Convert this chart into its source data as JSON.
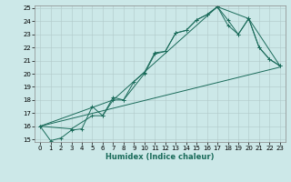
{
  "xlabel": "Humidex (Indice chaleur)",
  "bg_color": "#cce8e8",
  "grid_color": "#b0c8c8",
  "line_color": "#1a6b5a",
  "xlim": [
    -0.5,
    23.5
  ],
  "ylim": [
    14.8,
    25.2
  ],
  "xticks": [
    0,
    1,
    2,
    3,
    4,
    5,
    6,
    7,
    8,
    9,
    10,
    11,
    12,
    13,
    14,
    15,
    16,
    17,
    18,
    19,
    20,
    21,
    22,
    23
  ],
  "yticks": [
    15,
    16,
    17,
    18,
    19,
    20,
    21,
    22,
    23,
    24,
    25
  ],
  "series": [
    {
      "x": [
        0,
        1,
        2,
        3,
        4,
        5,
        6,
        7,
        8,
        9,
        10,
        11,
        12,
        13,
        14,
        15,
        16,
        17,
        18,
        19,
        20,
        21,
        22,
        23
      ],
      "y": [
        16.0,
        14.9,
        15.1,
        15.7,
        15.8,
        17.5,
        16.8,
        18.0,
        18.0,
        19.4,
        20.1,
        21.6,
        21.7,
        23.1,
        23.3,
        24.1,
        24.5,
        25.1,
        24.1,
        23.0,
        24.2,
        22.0,
        21.1,
        20.6
      ],
      "marker": true
    },
    {
      "x": [
        0,
        3,
        5,
        6,
        7,
        8,
        10,
        11,
        12,
        13,
        14,
        15,
        16,
        17,
        18,
        19,
        20,
        21,
        22,
        23
      ],
      "y": [
        16.0,
        15.8,
        16.8,
        16.8,
        18.2,
        18.0,
        20.0,
        21.5,
        21.7,
        23.1,
        23.3,
        24.1,
        24.5,
        25.1,
        23.7,
        23.0,
        24.2,
        22.0,
        21.1,
        20.6
      ],
      "marker": true
    },
    {
      "x": [
        0,
        23
      ],
      "y": [
        16.0,
        20.5
      ],
      "marker": false
    },
    {
      "x": [
        0,
        7,
        17,
        20,
        23
      ],
      "y": [
        16.0,
        18.0,
        25.1,
        24.2,
        20.6
      ],
      "marker": false
    }
  ]
}
